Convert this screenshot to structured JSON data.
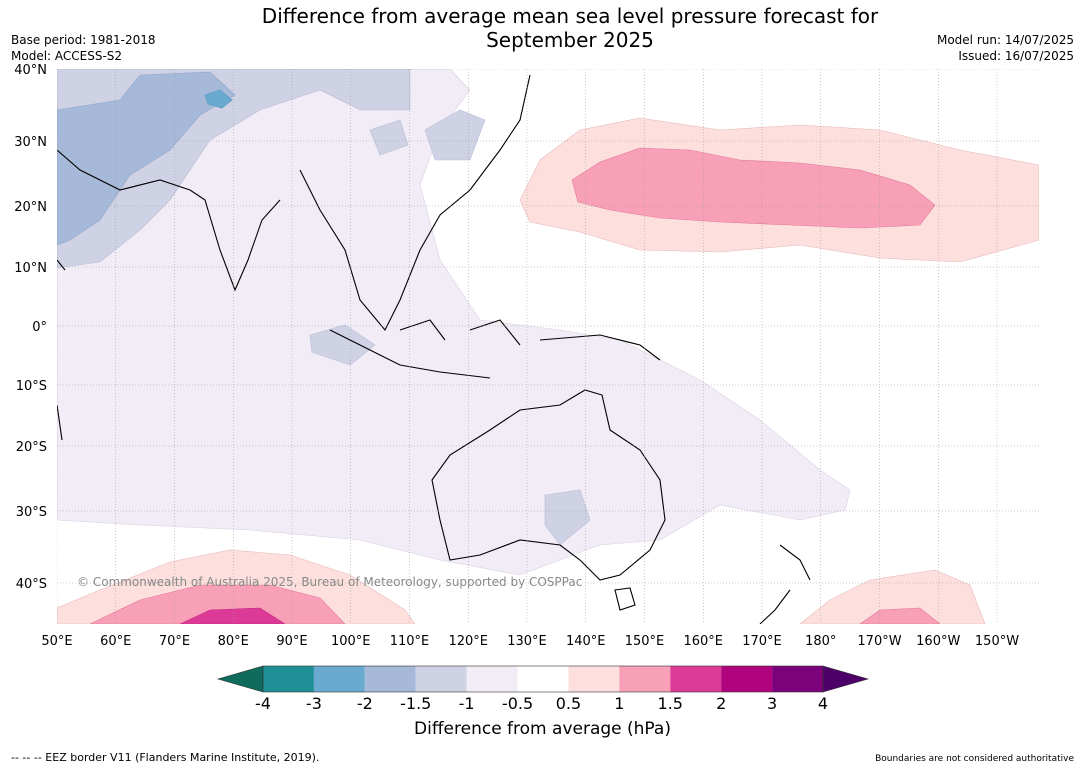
{
  "title_line1": "Difference from average mean sea level pressure forecast for",
  "title_line2": "September 2025",
  "base_period": "Base period: 1981-2018",
  "model": "Model: ACCESS-S2",
  "model_run": "Model run: 14/07/2025",
  "issued": "Issued: 16/07/2025",
  "copyright": "© Commonwealth of Australia 2025, Bureau of Meteorology, supported by COSPPac",
  "lat_labels": [
    "40°N",
    "30°N",
    "20°N",
    "10°N",
    "0°",
    "10°S",
    "20°S",
    "30°S",
    "40°S"
  ],
  "lon_labels": [
    "50°E",
    "60°E",
    "70°E",
    "80°E",
    "90°E",
    "100°E",
    "110°E",
    "120°E",
    "130°E",
    "140°E",
    "150°E",
    "160°E",
    "170°E",
    "180°",
    "170°W",
    "160°W",
    "150°W"
  ],
  "colorbar": {
    "label": "Difference from average (hPa)",
    "ticks": [
      "-4",
      "-3",
      "-2",
      "-1.5",
      "-1",
      "-0.5",
      "0.5",
      "1",
      "1.5",
      "2",
      "3",
      "4"
    ],
    "colors": [
      "#0f6b5c",
      "#1f8f96",
      "#6aaad0",
      "#a7b9d8",
      "#cfd1e4",
      "#f1ecf5",
      "#ffffff",
      "#fde0de",
      "#f8a0b8",
      "#dc3a96",
      "#b0037e",
      "#7b027a",
      "#4d0068"
    ]
  },
  "footnote_left": "--  --  -- EEZ border V11 (Flanders Marine Institute, 2019).",
  "footnote_right": "Boundaries are not considered authoritative"
}
